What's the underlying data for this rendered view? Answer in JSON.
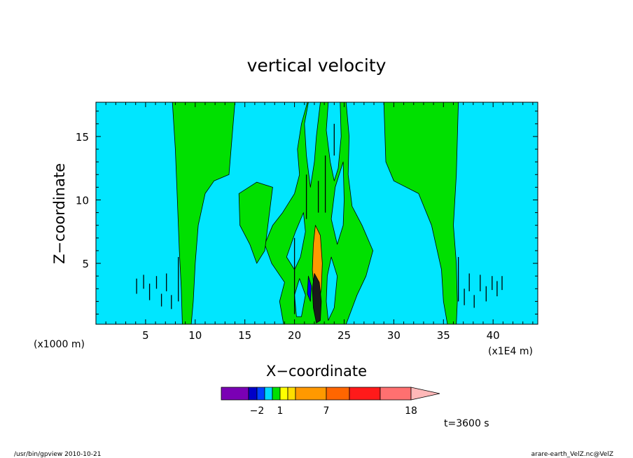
{
  "chart_data": {
    "type": "heatmap",
    "title": "vertical velocity",
    "xlabel": "X−coordinate",
    "ylabel": "Z−coordinate",
    "x_unit_label": "(x1000 m)",
    "x_scale_label": "(x1E4 m)",
    "xlim": [
      0,
      44.5
    ],
    "ylim": [
      0.2,
      17.7
    ],
    "xticks": [
      5,
      10,
      15,
      20,
      25,
      30,
      35,
      40
    ],
    "yticks": [
      5,
      10,
      15
    ],
    "background_color": "#00e6ff",
    "features": [
      {
        "level": "green",
        "color": "#00e000",
        "points": [
          [
            7.7,
            17.7
          ],
          [
            14.0,
            17.7
          ],
          [
            13.4,
            12.0
          ],
          [
            11.9,
            11.5
          ],
          [
            11.0,
            10.5
          ],
          [
            10.3,
            8.0
          ],
          [
            10.0,
            5.0
          ],
          [
            9.8,
            2.0
          ],
          [
            9.6,
            0.2
          ],
          [
            8.7,
            0.2
          ],
          [
            8.6,
            3.0
          ],
          [
            8.4,
            6.0
          ],
          [
            8.2,
            10.0
          ],
          [
            8.0,
            14.0
          ]
        ]
      },
      {
        "level": "green",
        "color": "#00e000",
        "points": [
          [
            29.0,
            17.7
          ],
          [
            36.5,
            17.7
          ],
          [
            36.3,
            12.0
          ],
          [
            36.0,
            8.0
          ],
          [
            36.3,
            5.0
          ],
          [
            36.4,
            2.0
          ],
          [
            36.3,
            0.2
          ],
          [
            35.4,
            0.2
          ],
          [
            35.0,
            2.0
          ],
          [
            34.8,
            4.5
          ],
          [
            33.8,
            8.0
          ],
          [
            32.5,
            10.5
          ],
          [
            30.0,
            11.5
          ],
          [
            29.2,
            13.0
          ]
        ]
      },
      {
        "level": "green",
        "color": "#00e000",
        "points": [
          [
            21.3,
            17.7
          ],
          [
            25.2,
            17.7
          ],
          [
            25.5,
            15.0
          ],
          [
            25.4,
            12.0
          ],
          [
            25.8,
            9.5
          ],
          [
            26.8,
            8.0
          ],
          [
            27.9,
            6.0
          ],
          [
            27.2,
            4.0
          ],
          [
            26.3,
            2.5
          ],
          [
            25.2,
            0.2
          ],
          [
            18.9,
            0.2
          ],
          [
            18.5,
            2.0
          ],
          [
            19.0,
            3.5
          ],
          [
            17.7,
            5.0
          ],
          [
            17.0,
            6.5
          ],
          [
            17.8,
            8.0
          ],
          [
            18.8,
            9.0
          ],
          [
            20.0,
            10.5
          ],
          [
            20.5,
            12.0
          ],
          [
            20.3,
            14.0
          ],
          [
            20.7,
            16.0
          ]
        ]
      },
      {
        "level": "green",
        "color": "#00e000",
        "points": [
          [
            16.2,
            11.4
          ],
          [
            17.8,
            11.0
          ],
          [
            17.4,
            8.5
          ],
          [
            17.0,
            6.0
          ],
          [
            16.2,
            5.0
          ],
          [
            15.5,
            6.5
          ],
          [
            14.5,
            8.0
          ],
          [
            14.4,
            10.5
          ]
        ]
      },
      {
        "level": "cyan",
        "color": "#00e6ff",
        "points": [
          [
            21.4,
            17.7
          ],
          [
            22.6,
            17.7
          ],
          [
            22.2,
            15.0
          ],
          [
            22.0,
            13.0
          ],
          [
            21.6,
            11.0
          ],
          [
            21.2,
            13.5
          ],
          [
            21.0,
            16.0
          ]
        ]
      },
      {
        "level": "cyan",
        "color": "#00e6ff",
        "points": [
          [
            23.4,
            17.7
          ],
          [
            24.6,
            17.7
          ],
          [
            24.7,
            15.0
          ],
          [
            24.4,
            12.5
          ],
          [
            24.0,
            11.5
          ],
          [
            23.6,
            13.0
          ],
          [
            23.2,
            15.5
          ]
        ]
      },
      {
        "level": "cyan",
        "color": "#00e6ff",
        "points": [
          [
            24.9,
            13.0
          ],
          [
            25.0,
            10.0
          ],
          [
            24.9,
            8.0
          ],
          [
            24.3,
            6.5
          ],
          [
            23.7,
            8.5
          ],
          [
            24.1,
            11.0
          ]
        ]
      },
      {
        "level": "cyan",
        "color": "#00e6ff",
        "points": [
          [
            20.9,
            9.0
          ],
          [
            21.1,
            7.5
          ],
          [
            20.6,
            5.5
          ],
          [
            20.0,
            4.5
          ],
          [
            19.2,
            5.5
          ],
          [
            20.1,
            7.5
          ]
        ]
      },
      {
        "level": "cyan",
        "color": "#00e6ff",
        "points": [
          [
            23.7,
            5.5
          ],
          [
            24.3,
            4.0
          ],
          [
            24.0,
            1.5
          ],
          [
            23.4,
            0.5
          ],
          [
            23.2,
            2.0
          ],
          [
            23.3,
            4.0
          ]
        ]
      },
      {
        "level": "cyan",
        "color": "#00e6ff",
        "points": [
          [
            20.5,
            3.8
          ],
          [
            21.1,
            2.5
          ],
          [
            20.7,
            0.8
          ],
          [
            20.2,
            0.8
          ],
          [
            20.0,
            2.5
          ]
        ]
      },
      {
        "level": "warm",
        "color": "#ff9900",
        "points": [
          [
            22.1,
            8.0
          ],
          [
            22.6,
            7.2
          ],
          [
            22.8,
            5.0
          ],
          [
            22.7,
            3.0
          ],
          [
            22.4,
            1.5
          ],
          [
            22.0,
            2.5
          ],
          [
            21.8,
            4.5
          ],
          [
            21.9,
            6.5
          ]
        ]
      },
      {
        "level": "dark",
        "color": "#1a1a1a",
        "points": [
          [
            22.0,
            4.2
          ],
          [
            22.5,
            3.5
          ],
          [
            22.7,
            2.0
          ],
          [
            22.6,
            0.5
          ],
          [
            22.2,
            0.3
          ],
          [
            21.9,
            1.5
          ],
          [
            21.8,
            3.0
          ]
        ]
      },
      {
        "level": "negative",
        "color": "#0000ff",
        "points": [
          [
            21.4,
            4.0
          ],
          [
            21.7,
            3.2
          ],
          [
            21.6,
            2.0
          ],
          [
            21.3,
            2.6
          ]
        ]
      }
    ],
    "wiggles": [
      [
        4.1,
        2.6,
        4.1,
        3.8
      ],
      [
        4.8,
        3.0,
        4.8,
        4.1
      ],
      [
        5.4,
        2.1,
        5.4,
        3.4
      ],
      [
        6.1,
        3.0,
        6.1,
        4.0
      ],
      [
        6.6,
        1.6,
        6.6,
        2.6
      ],
      [
        7.1,
        2.8,
        7.1,
        4.2
      ],
      [
        7.6,
        1.4,
        7.6,
        2.5
      ],
      [
        8.3,
        2.0,
        8.3,
        5.5
      ],
      [
        36.5,
        2.0,
        36.5,
        5.5
      ],
      [
        37.1,
        1.7,
        37.1,
        3.0
      ],
      [
        37.6,
        2.8,
        37.6,
        4.2
      ],
      [
        38.1,
        1.5,
        38.1,
        2.5
      ],
      [
        38.7,
        2.8,
        38.7,
        4.1
      ],
      [
        39.3,
        2.0,
        39.3,
        3.2
      ],
      [
        39.9,
        2.9,
        39.9,
        4.0
      ],
      [
        40.4,
        2.4,
        40.4,
        3.6
      ],
      [
        40.9,
        2.9,
        40.9,
        4.0
      ],
      [
        20.0,
        1.0,
        20.0,
        7.0
      ],
      [
        21.2,
        8.5,
        21.2,
        12.0
      ],
      [
        23.1,
        9.0,
        23.1,
        13.5
      ],
      [
        24.0,
        13.5,
        24.0,
        16.0
      ],
      [
        22.4,
        9.0,
        22.4,
        11.5
      ]
    ]
  },
  "colorbar": {
    "label_values": [
      "−2",
      "1",
      "7",
      "18"
    ],
    "colors": [
      "#7a00b4",
      "#0000c8",
      "#0040ff",
      "#00d8ff",
      "#00e000",
      "#ffff00",
      "#ffdd00",
      "#ff9900",
      "#ff6600",
      "#ff1a1a",
      "#ff7070",
      "#ffb8b8"
    ]
  },
  "time_label": "t=3600 s",
  "footer": {
    "left": "/usr/bin/gpview   2010-10-21",
    "right": "arare-earth_VelZ.nc@VelZ"
  }
}
